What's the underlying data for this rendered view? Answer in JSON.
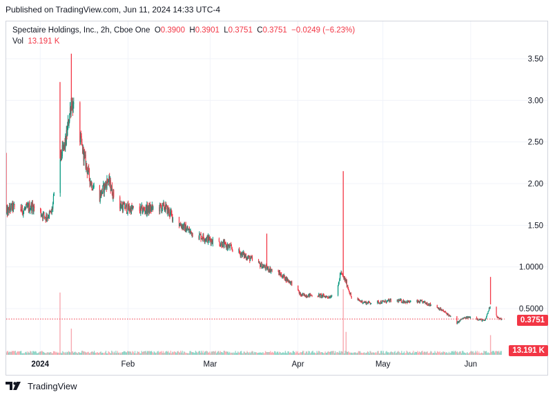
{
  "published": "Published on TradingView.com, Jun 11, 2024 14:33 UTC-4",
  "legend": {
    "symbol": "Spectaire Holdings, Inc., 2h, Cboe One",
    "o_label": "O",
    "o": "0.3900",
    "h_label": "H",
    "h": "0.3901",
    "l_label": "L",
    "l": "0.3751",
    "c_label": "C",
    "c": "0.3751",
    "change": "−0.0249 (−6.23%)",
    "vol_label": "Vol",
    "vol": "13.191 K"
  },
  "last_price_badge": "0.3751",
  "volume_badge": "13.191 K",
  "footer_brand": "TradingView",
  "colors": {
    "up": "#089981",
    "down": "#f23645",
    "grid": "#f0f3fa",
    "text": "#131722"
  },
  "chart_data": {
    "type": "candlestick",
    "y_ticks": [
      "3.50",
      "3.00",
      "2.50",
      "2.00",
      "1.50",
      "1.0000",
      "0.5000"
    ],
    "y_tick_values": [
      3.5,
      3.0,
      2.5,
      2.0,
      1.5,
      1.0,
      0.5
    ],
    "x_ticks": [
      "2024",
      "Feb",
      "Mar",
      "Apr",
      "May",
      "Jun"
    ],
    "x_tick_dates": [
      "2024-01-01",
      "2024-02-01",
      "2024-03-01",
      "2024-04-01",
      "2024-05-01",
      "2024-06-01"
    ],
    "x_range": [
      "2023-12-20",
      "2024-06-12"
    ],
    "ylim": [
      0.15,
      3.6
    ],
    "last_price": 0.3751,
    "anchors": [
      [
        "2023-12-20",
        1.65
      ],
      [
        "2023-12-22",
        1.72
      ],
      [
        "2023-12-26",
        1.68
      ],
      [
        "2023-12-29",
        1.73
      ],
      [
        "2024-01-03",
        1.6
      ],
      [
        "2024-01-05",
        1.65
      ],
      [
        "2024-01-08",
        2.3
      ],
      [
        "2024-01-10",
        2.5
      ],
      [
        "2024-01-12",
        3.0
      ],
      [
        "2024-01-15",
        2.55
      ],
      [
        "2024-01-17",
        2.25
      ],
      [
        "2024-01-19",
        2.0
      ],
      [
        "2024-01-22",
        1.85
      ],
      [
        "2024-01-25",
        2.05
      ],
      [
        "2024-01-28",
        1.75
      ],
      [
        "2024-02-01",
        1.7
      ],
      [
        "2024-02-05",
        1.68
      ],
      [
        "2024-02-10",
        1.7
      ],
      [
        "2024-02-14",
        1.72
      ],
      [
        "2024-02-18",
        1.55
      ],
      [
        "2024-02-23",
        1.42
      ],
      [
        "2024-02-28",
        1.35
      ],
      [
        "2024-03-05",
        1.28
      ],
      [
        "2024-03-10",
        1.2
      ],
      [
        "2024-03-15",
        1.1
      ],
      [
        "2024-03-20",
        1.0
      ],
      [
        "2024-03-25",
        0.93
      ],
      [
        "2024-03-30",
        0.8
      ],
      [
        "2024-04-02",
        0.66
      ],
      [
        "2024-04-08",
        0.66
      ],
      [
        "2024-04-12",
        0.64
      ],
      [
        "2024-04-15",
        0.72
      ],
      [
        "2024-04-16",
        0.93
      ],
      [
        "2024-04-18",
        0.82
      ],
      [
        "2024-04-20",
        0.62
      ],
      [
        "2024-04-25",
        0.57
      ],
      [
        "2024-05-01",
        0.58
      ],
      [
        "2024-05-05",
        0.6
      ],
      [
        "2024-05-10",
        0.58
      ],
      [
        "2024-05-15",
        0.58
      ],
      [
        "2024-05-20",
        0.52
      ],
      [
        "2024-05-24",
        0.43
      ],
      [
        "2024-05-27",
        0.32
      ],
      [
        "2024-05-29",
        0.38
      ],
      [
        "2024-06-01",
        0.4
      ],
      [
        "2024-06-04",
        0.37
      ],
      [
        "2024-06-06",
        0.35
      ],
      [
        "2024-06-08",
        0.55
      ],
      [
        "2024-06-10",
        0.42
      ],
      [
        "2024-06-11",
        0.3751
      ]
    ],
    "spikes": [
      {
        "date": "2023-12-20",
        "high": 2.37
      },
      {
        "date": "2024-01-08",
        "high": 3.22
      },
      {
        "date": "2024-01-12",
        "high": 3.56
      },
      {
        "date": "2024-03-21",
        "high": 1.4
      },
      {
        "date": "2024-04-17",
        "high": 2.15
      },
      {
        "date": "2024-06-08",
        "high": 0.88
      }
    ],
    "volume_spikes": [
      {
        "date": "2024-01-08",
        "rel": 0.95
      },
      {
        "date": "2024-01-12",
        "rel": 0.4
      },
      {
        "date": "2024-04-17",
        "rel": 1.0
      },
      {
        "date": "2024-04-18",
        "rel": 0.35
      },
      {
        "date": "2024-06-08",
        "rel": 0.3
      }
    ]
  }
}
